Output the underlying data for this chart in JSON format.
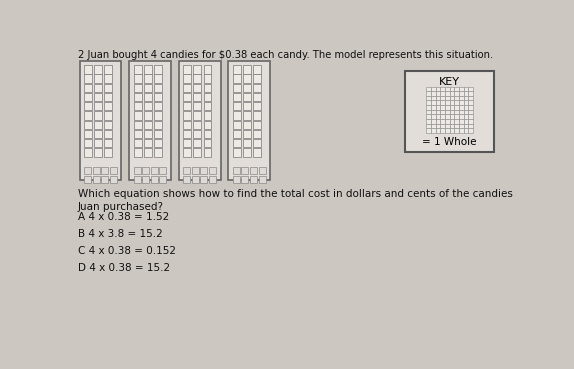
{
  "title": "2 Juan bought 4 candies for $0.38 each candy. The model represents this situation.",
  "question": "Which equation shows how to find the total cost in dollars and cents of the candies\nJuan purchased?",
  "answers": [
    "A 4 x 0.38 = 1.52",
    "B 4 x 3.8 = 15.2",
    "C 4 x 0.38 = 0.152",
    "D 4 x 0.38 = 15.2"
  ],
  "bg_color": "#cdc7c2",
  "model_outer_bg": "#e2ddd9",
  "model_border": "#666666",
  "strip_cell_bg": "#edeae6",
  "strip_cell_border": "#777777",
  "small_cell_bg": "#dedad5",
  "small_cell_border": "#888888",
  "key_bg": "#e2ddd9",
  "key_border": "#555555",
  "key_cell_bg": "#edeae6",
  "key_cell_border": "#888888",
  "key_label": "KEY",
  "key_note": "= 1 Whole",
  "num_models": 4,
  "strips_per_model": 3,
  "strip_rows": 10,
  "small_cols": 4,
  "small_rows": 2
}
